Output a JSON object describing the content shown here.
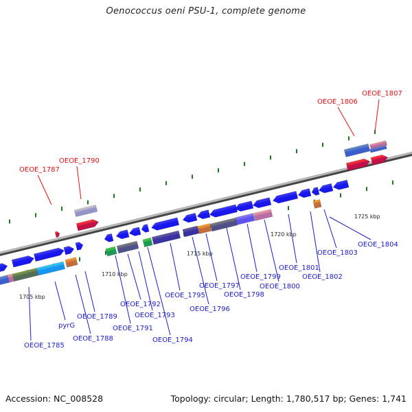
{
  "title": "Oenococcus oeni PSU-1, complete genome",
  "footer": {
    "accession": "Accession: NC_008528",
    "summary": "Topology: circular; Length: 1,780,517 bp; Genes: 1,741"
  },
  "colors": {
    "backbone": "#777777",
    "forward_gene": "#1a1aee",
    "tick": "#1a7a1a",
    "rna_label": "#dd1111",
    "gene_label": "#1a1acc"
  },
  "scale_labels": [
    "1705 kbp",
    "1710 kbp",
    "1715 kbp",
    "1720 kbp",
    "1725 kbp"
  ],
  "rna_labels": [
    "OEOE_1787",
    "OEOE_1790",
    "OEOE_1806",
    "OEOE_1807"
  ],
  "gene_labels": [
    "OEOE_1785",
    "pyrG",
    "OEOE_1788",
    "OEOE_1789",
    "OEOE_1791",
    "OEOE_1792",
    "OEOE_1793",
    "OEOE_1794",
    "OEOE_1795",
    "OEOE_1796",
    "OEOE_1797",
    "OEOE_1798",
    "OEOE_1799",
    "OEOE_1800",
    "OEOE_1801",
    "OEOE_1802",
    "OEOE_1803",
    "OEOE_1804"
  ]
}
